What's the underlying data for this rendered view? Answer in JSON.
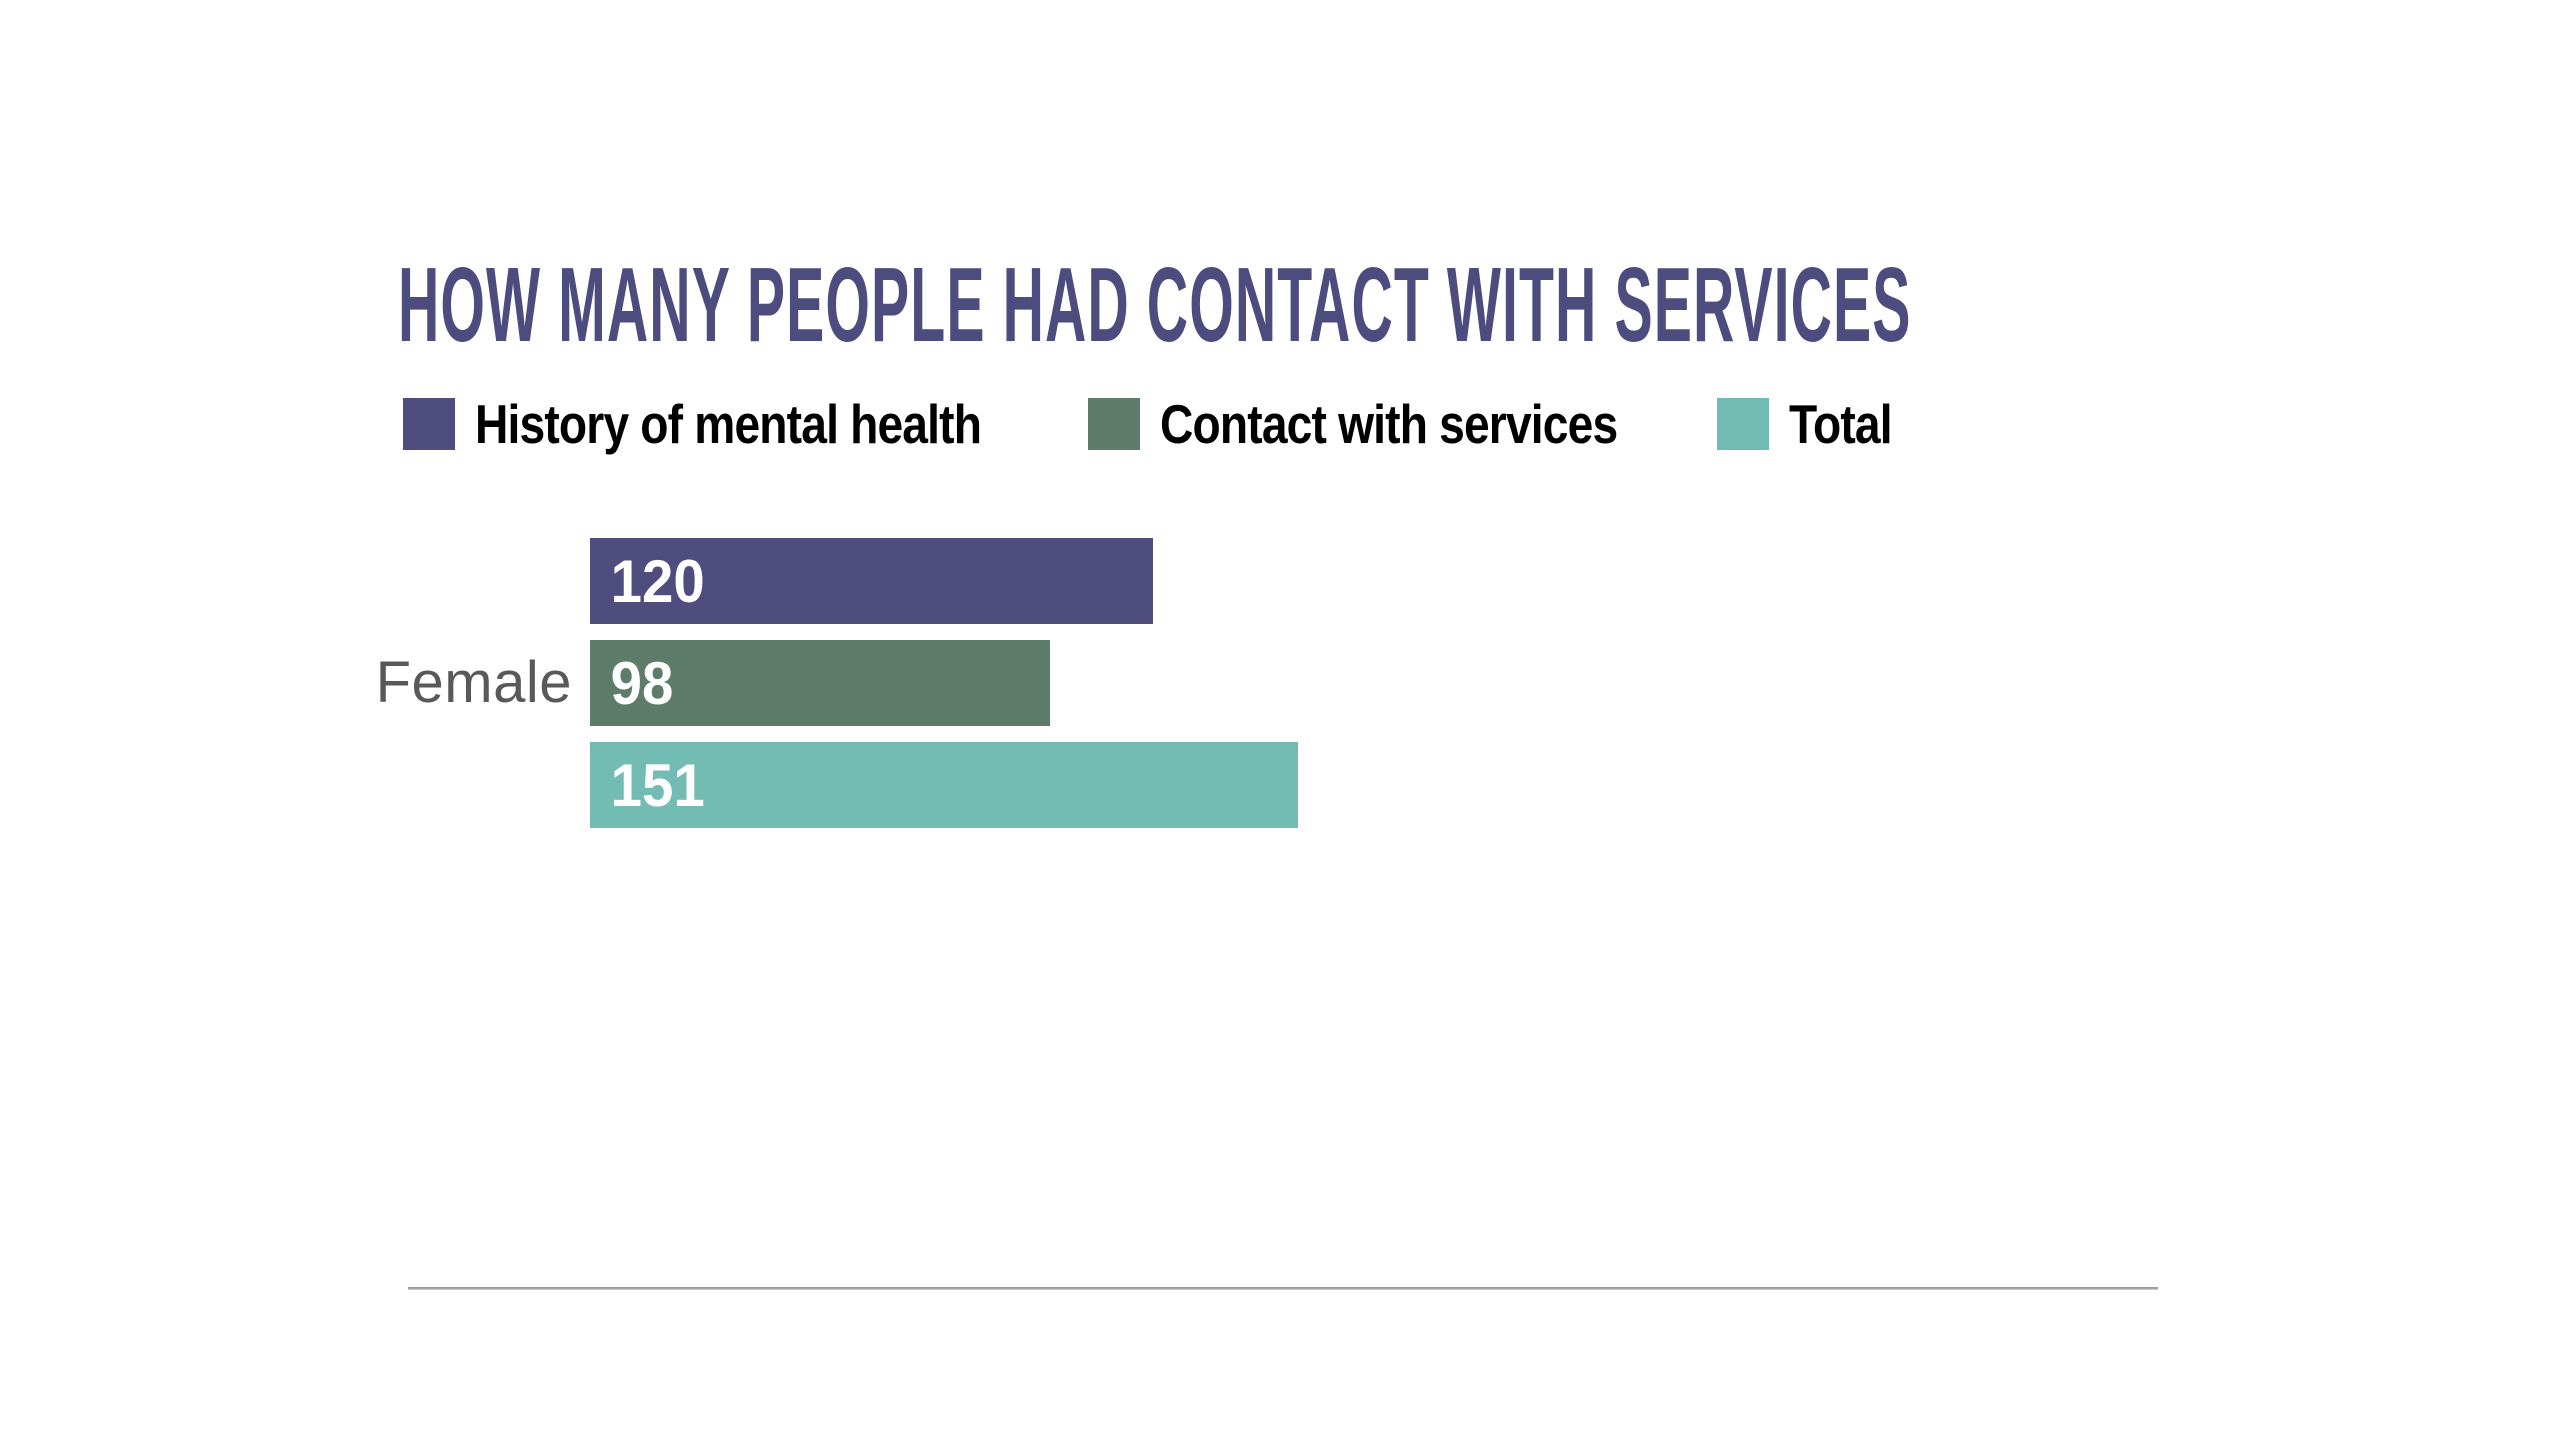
{
  "page": {
    "background_color": "#ffffff"
  },
  "title": {
    "text": "HOW MANY PEOPLE HAD CONTACT WITH SERVICES",
    "color": "#4D4C7E"
  },
  "legend": {
    "items": [
      {
        "label": "History of mental health",
        "color": "#4F4D7E"
      },
      {
        "label": "Contact with services",
        "color": "#5D7C69"
      },
      {
        "label": "Total",
        "color": "#73BCB3"
      }
    ],
    "text_color": "#000000"
  },
  "category": {
    "label": "Female",
    "color": "#595959"
  },
  "bars": [
    {
      "series": "History of mental health",
      "value": "120",
      "color": "#4F4D7E"
    },
    {
      "series": "Contact with services",
      "value": "98",
      "color": "#5D7C69"
    },
    {
      "series": "Total",
      "value": "151",
      "color": "#73BCB3"
    }
  ],
  "divider": {
    "color": "#A2A2A2"
  },
  "chart_data": {
    "type": "bar",
    "orientation": "horizontal",
    "title": "HOW MANY PEOPLE HAD CONTACT WITH SERVICES",
    "categories": [
      "Female"
    ],
    "series": [
      {
        "name": "History of mental health",
        "values": [
          120
        ],
        "color": "#4F4D7E"
      },
      {
        "name": "Contact with services",
        "values": [
          98
        ],
        "color": "#5D7C69"
      },
      {
        "name": "Total",
        "values": [
          151
        ],
        "color": "#73BCB3"
      }
    ],
    "xlim": [
      0,
      151
    ],
    "grid": false,
    "axes_visible": false,
    "legend_position": "top-left",
    "value_labels": "inside-bar-start",
    "value_label_color": "#ffffff"
  }
}
